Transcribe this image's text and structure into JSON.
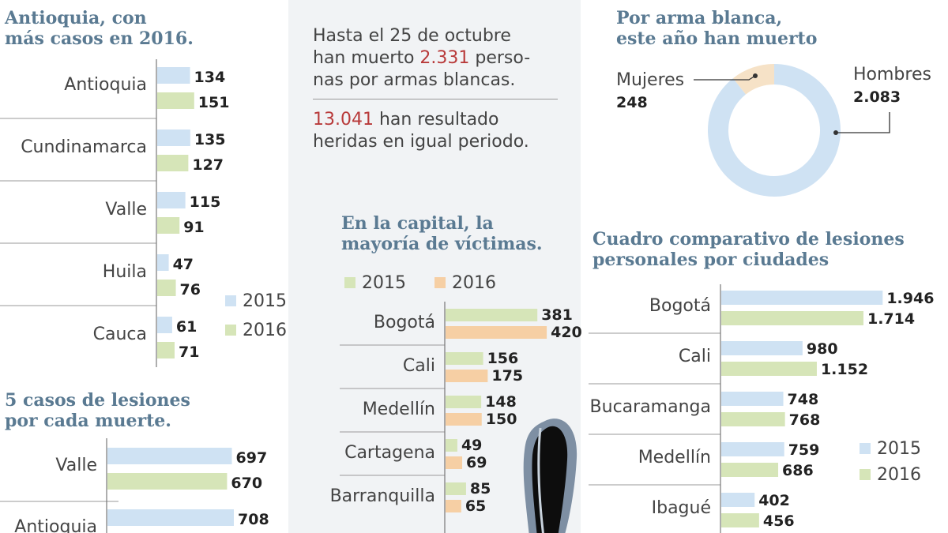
{
  "colors": {
    "c2015_blue": "#cfe2f3",
    "c2016_green": "#d6e5b8",
    "c2016_orange": "#f6cfa4",
    "title": "#5a7a92",
    "red": "#b83a3a"
  },
  "intro": {
    "line1": "Hasta el 25 de octubre",
    "line2a": "han muerto ",
    "line2b": "2.331",
    "line2c": " perso-",
    "line3": "nas por armas blancas.",
    "line4a": "13.041",
    "line4b": " han resultado",
    "line5": "heridas en igual periodo."
  },
  "chart_data": [
    {
      "id": "antioquia",
      "type": "bar",
      "title_lines": [
        "Antioquia, con",
        "más casos en 2016."
      ],
      "categories": [
        "Antioquia",
        "Cundinamarca",
        "Valle",
        "Huila",
        "Cauca"
      ],
      "series": [
        {
          "name": "2015",
          "values": [
            134,
            135,
            115,
            47,
            61
          ],
          "labels": [
            "134",
            "135",
            "115",
            "47",
            "61"
          ]
        },
        {
          "name": "2016",
          "values": [
            151,
            127,
            91,
            76,
            71
          ],
          "labels": [
            "151",
            "127",
            "91",
            "76",
            "71"
          ]
        }
      ],
      "legend": [
        "2015",
        "2016"
      ]
    },
    {
      "id": "lesiones",
      "type": "bar",
      "title_lines": [
        "5 casos de lesiones",
        "por cada muerte."
      ],
      "categories": [
        "Valle",
        "Antioquia"
      ],
      "series": [
        {
          "name": "2015",
          "values": [
            697,
            708
          ],
          "labels": [
            "697",
            "708"
          ]
        },
        {
          "name": "2016",
          "values": [
            670,
            null
          ],
          "labels": [
            "670",
            ""
          ]
        }
      ]
    },
    {
      "id": "capital",
      "type": "bar",
      "title_lines": [
        "En la capital, la",
        "mayoría de víctimas."
      ],
      "categories": [
        "Bogotá",
        "Cali",
        "Medellín",
        "Cartagena",
        "Barranquilla"
      ],
      "series": [
        {
          "name": "2015",
          "values": [
            381,
            156,
            148,
            49,
            85
          ],
          "labels": [
            "381",
            "156",
            "148",
            "49",
            "85"
          ]
        },
        {
          "name": "2016",
          "values": [
            420,
            175,
            150,
            69,
            65
          ],
          "labels": [
            "420",
            "175",
            "150",
            "69",
            "65"
          ]
        }
      ],
      "legend": [
        "2015",
        "2016"
      ]
    },
    {
      "id": "arma",
      "type": "pie",
      "title_lines": [
        "Por arma blanca,",
        "este año han muerto"
      ],
      "categories": [
        "Mujeres",
        "Hombres"
      ],
      "values": [
        248,
        2083
      ],
      "labels": [
        "248",
        "2.083"
      ]
    },
    {
      "id": "ciudades",
      "type": "bar",
      "title_lines": [
        "Cuadro comparativo de lesiones",
        "personales por ciudades"
      ],
      "categories": [
        "Bogotá",
        "Cali",
        "Bucaramanga",
        "Medellín",
        "Ibagué"
      ],
      "series": [
        {
          "name": "2015",
          "values": [
            1946,
            980,
            748,
            759,
            402
          ],
          "labels": [
            "1.946",
            "980",
            "748",
            "759",
            "402"
          ]
        },
        {
          "name": "2016",
          "values": [
            1714,
            1152,
            768,
            686,
            456
          ],
          "labels": [
            "1.714",
            "1.152",
            "768",
            "686",
            "456"
          ]
        }
      ],
      "legend": [
        "2015",
        "2016"
      ]
    }
  ]
}
